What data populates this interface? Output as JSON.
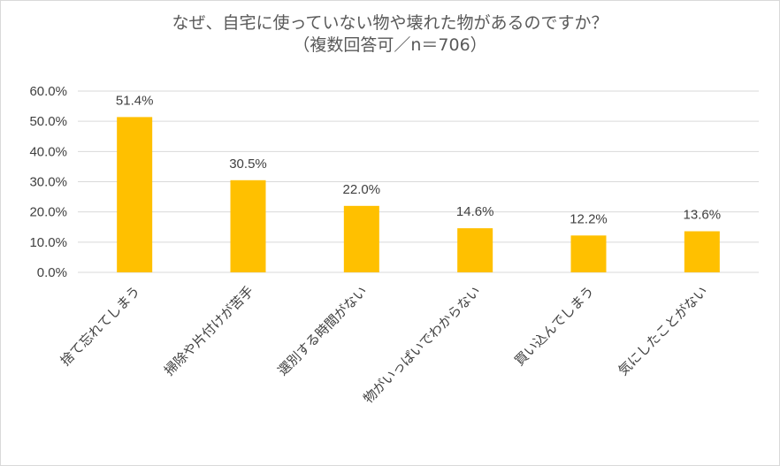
{
  "chart_data": {
    "type": "bar",
    "title": "なぜ、自宅に使っていない物や壊れた物があるのですか？",
    "subtitle": "（複数回答可／n＝706）",
    "categories": [
      "捨て忘れてしまう",
      "掃除や片付けが苦手",
      "選別する時間がない",
      "物がいっぱいでわからない",
      "買い込んでしまう",
      "気にしたことがない"
    ],
    "values": [
      51.4,
      30.5,
      22.0,
      14.6,
      12.2,
      13.6
    ],
    "data_labels": [
      "51.4%",
      "30.5%",
      "22.0%",
      "14.6%",
      "12.2%",
      "13.6%"
    ],
    "ylim": [
      0,
      60
    ],
    "yticks": [
      0,
      10,
      20,
      30,
      40,
      50,
      60
    ],
    "ytick_labels": [
      "0.0%",
      "10.0%",
      "20.0%",
      "30.0%",
      "40.0%",
      "50.0%",
      "60.0%"
    ],
    "xlabel": "",
    "ylabel": "",
    "grid": true,
    "legend": "none",
    "bar_color": "#ffc000",
    "grid_color": "#d9d9d9",
    "text_color": "#404040"
  }
}
